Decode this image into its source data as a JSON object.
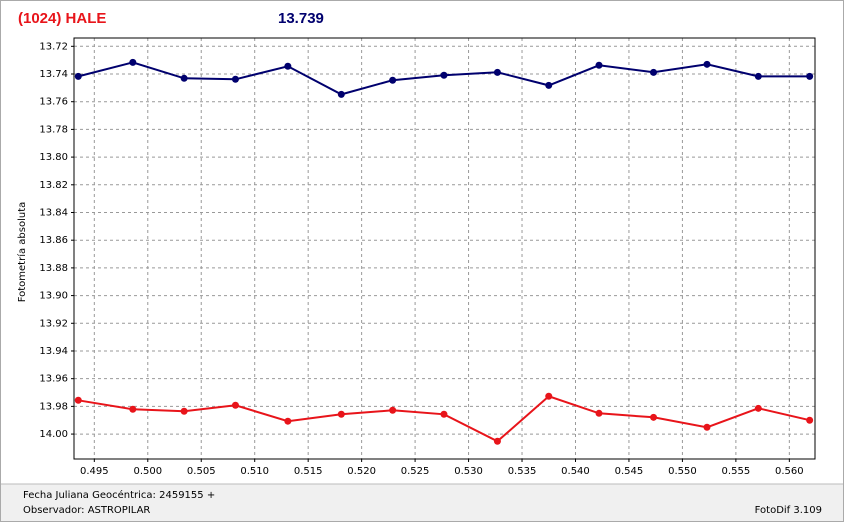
{
  "chart_data": {
    "type": "line",
    "title": "(1024) HALE",
    "subtitle": "13.739",
    "y_label": "Fotometría absoluta",
    "footer": {
      "x_label": "Fecha Juliana Geocéntrica: 2459155 +",
      "observer": "Observador: ASTROPILAR",
      "software": "FotoDif 3.109"
    },
    "x": [
      0.4935,
      0.4986,
      0.5034,
      0.5082,
      0.5131,
      0.5181,
      0.5229,
      0.5277,
      0.5327,
      0.5375,
      0.5422,
      0.5473,
      0.5523,
      0.5571,
      0.5619
    ],
    "series": [
      {
        "color": "#00006e",
        "values": [
          13.7417,
          13.7316,
          13.7431,
          13.7438,
          13.7344,
          13.7547,
          13.7445,
          13.7409,
          13.7388,
          13.7482,
          13.7337,
          13.7388,
          13.733,
          13.7417,
          13.7417
        ]
      },
      {
        "color": "#e8141a",
        "values": [
          13.9756,
          13.9821,
          13.9835,
          13.9792,
          13.9907,
          13.9857,
          13.9828,
          13.9857,
          14.0052,
          13.9727,
          13.985,
          13.9879,
          13.9951,
          13.9814,
          13.99
        ]
      }
    ],
    "xlim": [
      0.4931,
      0.5624
    ],
    "ylim": [
      13.714,
      14.018
    ],
    "y_inverted": true,
    "xticks": [
      0.495,
      {
        "value": 0.5,
        "label": "0.500"
      },
      0.505,
      {
        "value": 0.51,
        "label": "0.510"
      },
      0.515,
      {
        "value": 0.52,
        "label": "0.520"
      },
      0.525,
      {
        "value": 0.53,
        "label": "0.530"
      },
      0.535,
      {
        "value": 0.54,
        "label": "0.540"
      },
      0.545,
      {
        "value": 0.55,
        "label": "0.550"
      },
      0.555,
      {
        "value": 0.56,
        "label": "0.560"
      }
    ],
    "yticks": [
      13.72,
      13.74,
      13.76,
      13.78,
      {
        "value": 13.8,
        "label": "13.80"
      },
      13.82,
      13.84,
      13.86,
      13.88,
      {
        "value": 13.9,
        "label": "13.90"
      },
      13.92,
      13.94,
      13.96,
      13.98,
      {
        "value": 14,
        "label": "14.00"
      }
    ],
    "grid": true
  }
}
